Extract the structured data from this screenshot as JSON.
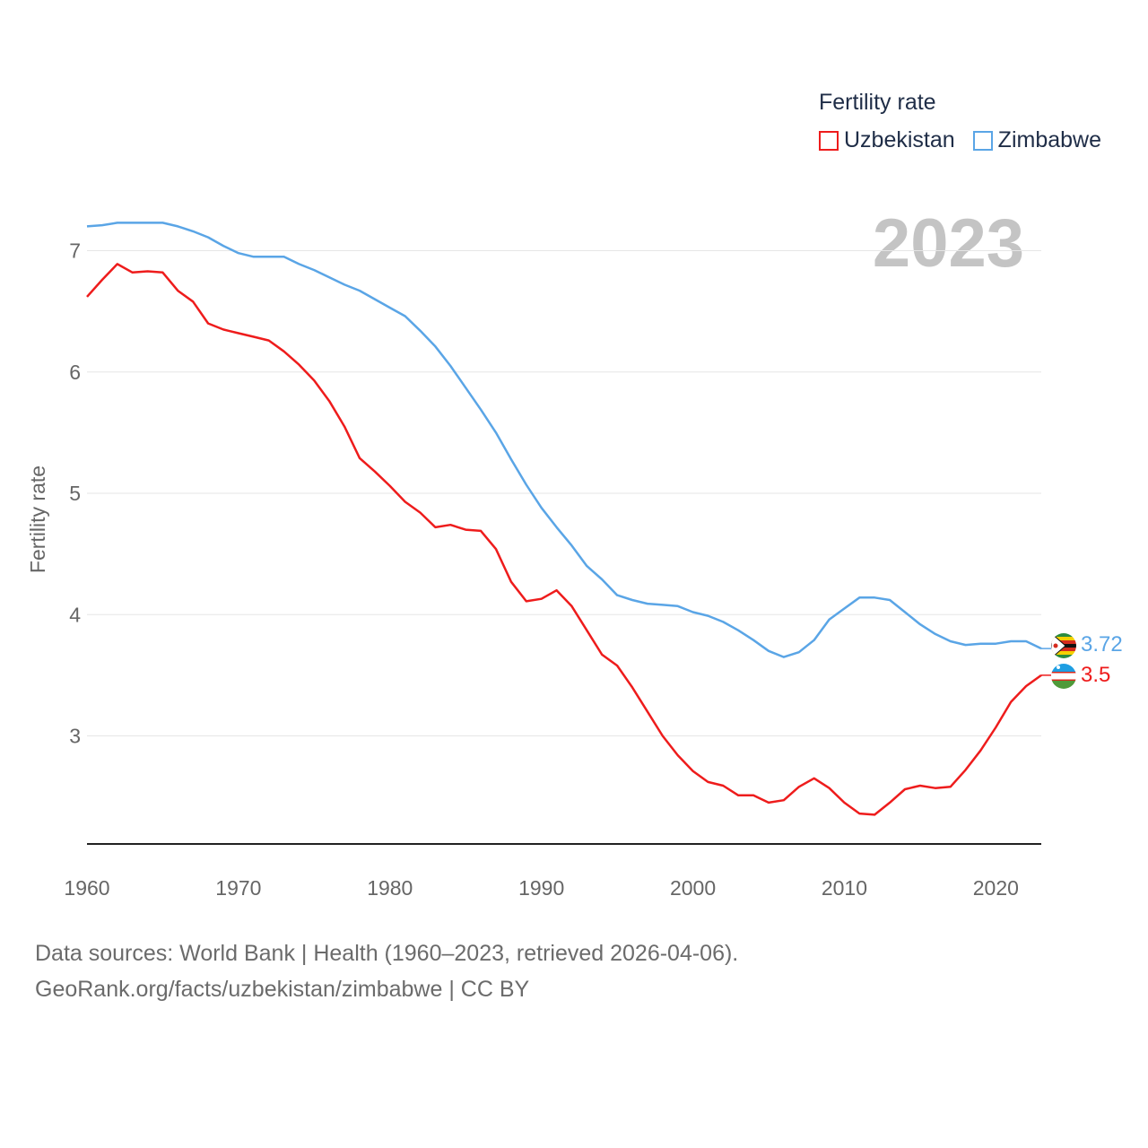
{
  "chart_data": {
    "type": "line",
    "title": "Fertility rate",
    "year_label": "2023",
    "xlabel": "",
    "ylabel": "Fertility rate",
    "xlim": [
      1960,
      2023
    ],
    "ylim": [
      2.1,
      7.35
    ],
    "x_ticks": [
      1960,
      1970,
      1980,
      1990,
      2000,
      2010,
      2020
    ],
    "y_ticks": [
      3,
      4,
      5,
      6,
      7
    ],
    "x": [
      1960,
      1961,
      1962,
      1963,
      1964,
      1965,
      1966,
      1967,
      1968,
      1969,
      1970,
      1971,
      1972,
      1973,
      1974,
      1975,
      1976,
      1977,
      1978,
      1979,
      1980,
      1981,
      1982,
      1983,
      1984,
      1985,
      1986,
      1987,
      1988,
      1989,
      1990,
      1991,
      1992,
      1993,
      1994,
      1995,
      1996,
      1997,
      1998,
      1999,
      2000,
      2001,
      2002,
      2003,
      2004,
      2005,
      2006,
      2007,
      2008,
      2009,
      2010,
      2011,
      2012,
      2013,
      2014,
      2015,
      2016,
      2017,
      2018,
      2019,
      2020,
      2021,
      2022,
      2023
    ],
    "series": [
      {
        "name": "Uzbekistan",
        "color": "#ee1c1c",
        "end_label": "3.5",
        "values": [
          6.62,
          6.76,
          6.89,
          6.82,
          6.83,
          6.82,
          6.67,
          6.58,
          6.4,
          6.35,
          6.32,
          6.29,
          6.26,
          6.17,
          6.06,
          5.93,
          5.76,
          5.55,
          5.29,
          5.18,
          5.06,
          4.93,
          4.84,
          4.72,
          4.74,
          4.7,
          4.69,
          4.54,
          4.27,
          4.11,
          4.13,
          4.2,
          4.07,
          3.87,
          3.67,
          3.58,
          3.4,
          3.2,
          3.0,
          2.84,
          2.71,
          2.62,
          2.59,
          2.51,
          2.51,
          2.45,
          2.47,
          2.58,
          2.65,
          2.57,
          2.45,
          2.36,
          2.35,
          2.45,
          2.56,
          2.59,
          2.57,
          2.58,
          2.72,
          2.88,
          3.07,
          3.28,
          3.41,
          3.5
        ]
      },
      {
        "name": "Zimbabwe",
        "color": "#5aa5e6",
        "end_label": "3.72",
        "values": [
          7.2,
          7.21,
          7.23,
          7.23,
          7.23,
          7.23,
          7.2,
          7.16,
          7.11,
          7.04,
          6.98,
          6.95,
          6.95,
          6.95,
          6.89,
          6.84,
          6.78,
          6.72,
          6.67,
          6.6,
          6.53,
          6.46,
          6.34,
          6.21,
          6.05,
          5.87,
          5.69,
          5.5,
          5.28,
          5.07,
          4.88,
          4.72,
          4.57,
          4.4,
          4.29,
          4.16,
          4.12,
          4.09,
          4.08,
          4.07,
          4.02,
          3.99,
          3.94,
          3.87,
          3.79,
          3.7,
          3.65,
          3.69,
          3.79,
          3.96,
          4.05,
          4.14,
          4.14,
          4.12,
          4.02,
          3.92,
          3.84,
          3.78,
          3.75,
          3.76,
          3.76,
          3.78,
          3.78,
          3.72
        ]
      }
    ],
    "legend": {
      "placement": "top-right",
      "title": "Fertility rate"
    }
  },
  "footer": {
    "line1": "Data sources: World Bank | Health (1960–2023, retrieved 2026-04-06).",
    "line2": "GeoRank.org/facts/uzbekistan/zimbabwe | CC BY"
  },
  "icons": {
    "uzbekistan": "uzbekistan-flag-icon",
    "zimbabwe": "zimbabwe-flag-icon"
  }
}
